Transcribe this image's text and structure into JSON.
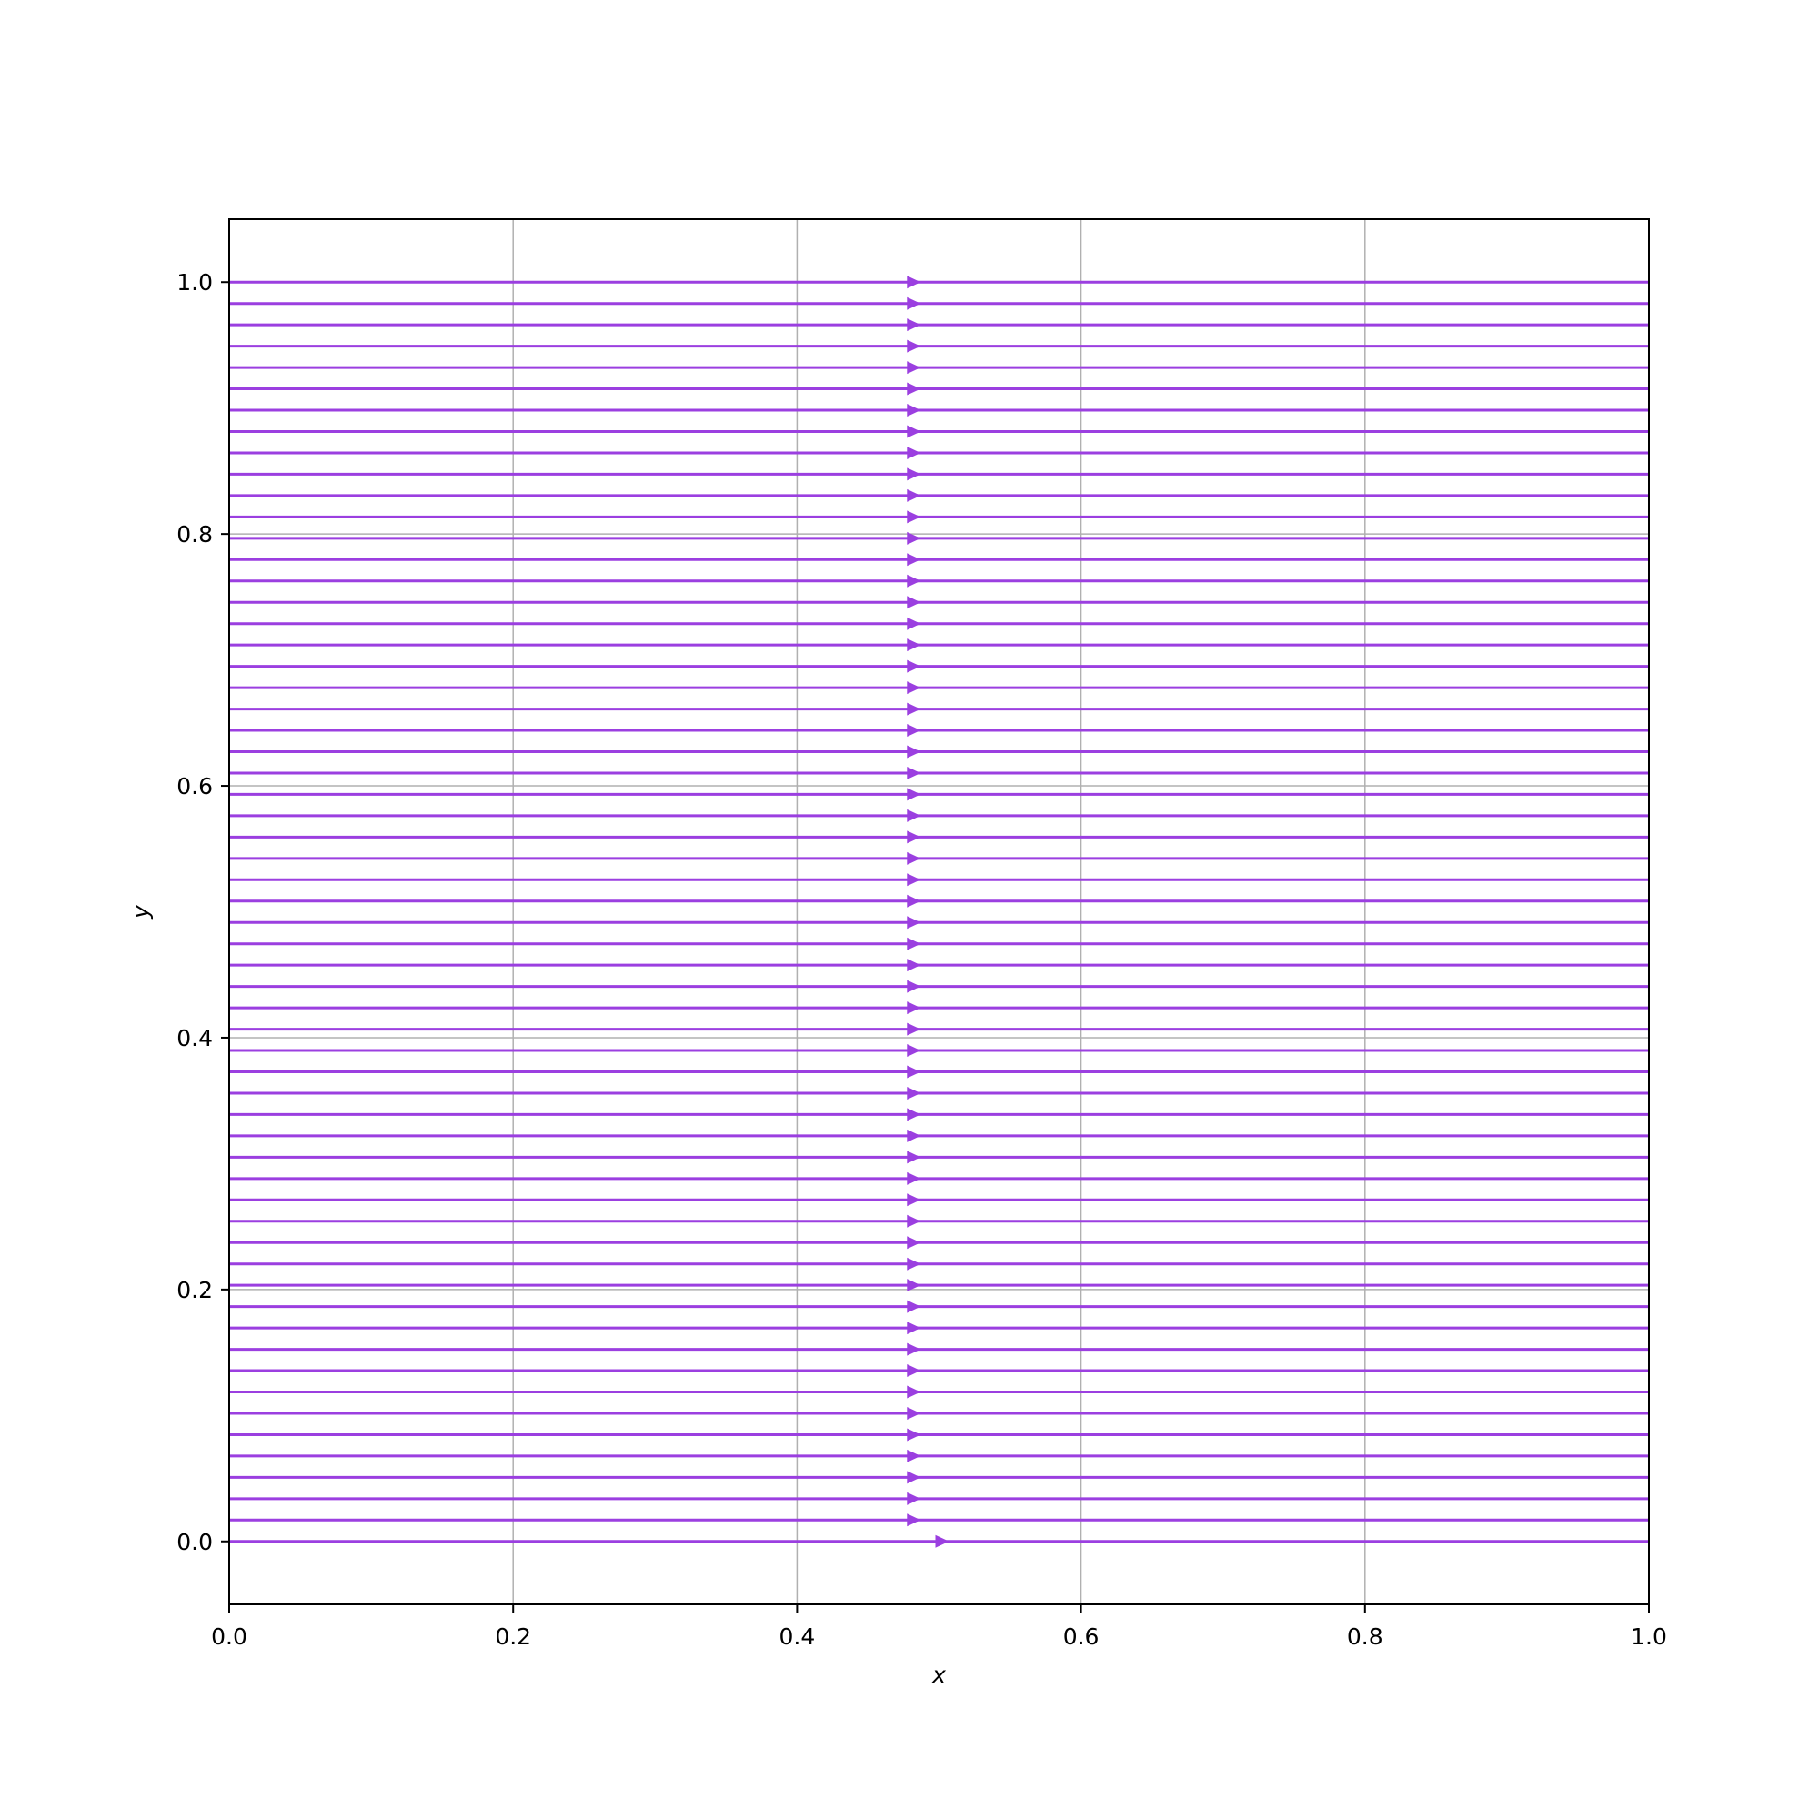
{
  "chart_data": {
    "type": "streamplot",
    "title": "",
    "xlabel": "x",
    "ylabel": "y",
    "xlim": [
      0.0,
      1.0
    ],
    "ylim": [
      -0.05,
      1.05
    ],
    "xticks": [
      0.0,
      0.2,
      0.4,
      0.6,
      0.8,
      1.0
    ],
    "xtick_labels": [
      "0.0",
      "0.2",
      "0.4",
      "0.6",
      "0.8",
      "1.0"
    ],
    "yticks": [
      0.0,
      0.2,
      0.4,
      0.6,
      0.8,
      1.0
    ],
    "ytick_labels": [
      "0.0",
      "0.2",
      "0.4",
      "0.6",
      "0.8",
      "1.0"
    ],
    "grid": true,
    "direction": "positive-x",
    "streamline_y_range": [
      0.0,
      1.0
    ],
    "streamline_count": 60,
    "arrow_x": 0.48,
    "arrow_x_bottom": 0.5,
    "colors": {
      "streamline": "#9b3fe0",
      "grid": "#b0b0b0",
      "axes": "#000000"
    }
  }
}
